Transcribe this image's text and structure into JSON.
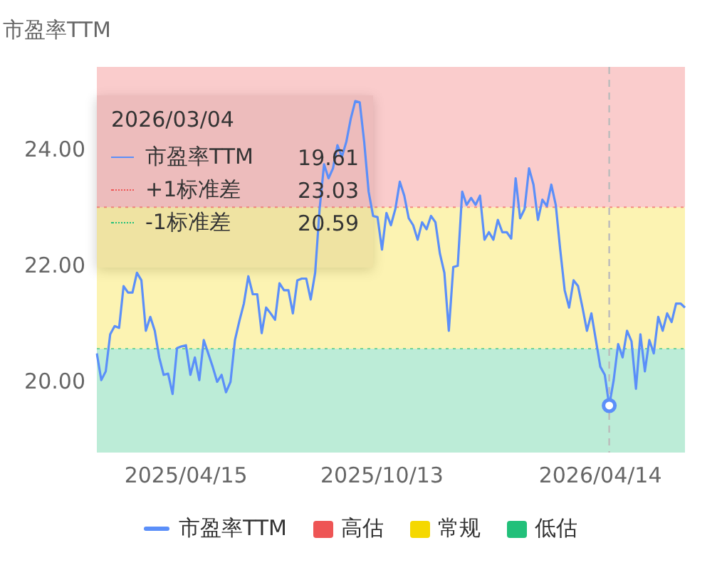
{
  "chart_data": {
    "type": "line",
    "ylabel": "市盈率TTM",
    "categories": [
      null,
      null,
      null,
      null,
      null,
      null,
      null,
      null,
      null,
      null,
      null,
      null,
      null,
      null,
      null,
      null,
      null,
      null,
      null,
      null,
      "2025/04/15",
      null,
      null,
      null,
      null,
      null,
      null,
      null,
      null,
      null,
      null,
      null,
      null,
      null,
      null,
      null,
      null,
      null,
      null,
      null,
      null,
      null,
      null,
      null,
      null,
      null,
      null,
      null,
      null,
      null,
      null,
      null,
      null,
      null,
      null,
      null,
      null,
      null,
      null,
      null,
      null,
      null,
      null,
      null,
      "2025/10/13",
      null,
      null,
      null,
      null,
      null,
      null,
      null,
      null,
      null,
      null,
      null,
      null,
      null,
      null,
      null,
      null,
      null,
      null,
      null,
      null,
      null,
      null,
      null,
      null,
      null,
      null,
      null,
      null,
      null,
      null,
      null,
      null,
      null,
      null,
      null,
      null,
      null,
      null,
      null,
      null,
      null,
      null,
      null,
      null,
      null,
      null,
      null,
      null,
      "2026/04/14",
      null,
      null,
      null,
      null,
      null,
      null,
      null,
      null,
      null,
      null,
      null,
      null,
      null,
      null,
      null,
      null,
      null,
      null,
      null
    ],
    "series": [
      {
        "name": "市盈率TTM",
        "color": "#5b8ff9",
        "values": [
          20.51,
          20.05,
          20.2,
          20.84,
          20.98,
          20.95,
          21.67,
          21.56,
          21.56,
          21.9,
          21.77,
          20.9,
          21.14,
          20.9,
          20.44,
          20.14,
          20.16,
          19.81,
          20.6,
          20.63,
          20.65,
          20.14,
          20.44,
          20.05,
          20.74,
          20.51,
          20.28,
          20.02,
          20.14,
          19.84,
          20.02,
          20.74,
          21.07,
          21.37,
          21.84,
          21.53,
          21.53,
          20.86,
          21.3,
          21.2,
          21.09,
          21.72,
          21.6,
          21.6,
          21.2,
          21.77,
          21.8,
          21.8,
          21.44,
          21.9,
          23.0,
          23.77,
          23.53,
          23.7,
          24.1,
          23.9,
          24.16,
          24.56,
          24.86,
          24.84,
          24.16,
          23.3,
          22.88,
          22.86,
          22.3,
          22.93,
          22.72,
          23.0,
          23.47,
          23.23,
          22.84,
          22.72,
          22.47,
          22.77,
          22.65,
          22.88,
          22.77,
          22.23,
          21.9,
          20.9,
          22.0,
          22.02,
          23.3,
          23.07,
          23.19,
          23.07,
          23.23,
          22.47,
          22.6,
          22.47,
          22.81,
          22.6,
          22.6,
          22.49,
          23.53,
          22.84,
          23.0,
          23.7,
          23.42,
          22.81,
          23.16,
          23.05,
          23.42,
          23.07,
          22.3,
          21.6,
          21.3,
          21.77,
          21.67,
          21.3,
          20.9,
          21.2,
          20.74,
          20.28,
          20.14,
          19.61,
          20.05,
          20.67,
          20.44,
          20.9,
          20.72,
          19.9,
          20.84,
          20.2,
          20.74,
          20.51,
          21.14,
          20.9,
          21.2,
          21.05,
          21.37,
          21.37,
          21.3
        ]
      }
    ],
    "ylim": [
      18.8,
      25.45
    ],
    "yticks": [
      {
        "value": 20,
        "label": "20.00"
      },
      {
        "value": 22,
        "label": "22.00"
      },
      {
        "value": 24,
        "label": "24.00"
      }
    ],
    "bands": [
      {
        "axis": "y",
        "from": 23.03,
        "to": 25.45,
        "label": "高估",
        "color": "#ee5555"
      },
      {
        "axis": "y",
        "from": 20.59,
        "to": 23.03,
        "label": "常规",
        "color": "#f5d800"
      },
      {
        "axis": "y",
        "from": 18.8,
        "to": 20.59,
        "label": "低估",
        "color": "#22c07a"
      }
    ],
    "ref_lines": [
      {
        "axis": "y",
        "value": 23.03,
        "label": "+1标准差",
        "color": "#ee5555",
        "line_style": "dotted"
      },
      {
        "axis": "y",
        "value": 20.59,
        "label": "-1标准差",
        "color": "#22c07a",
        "line_style": "dotted"
      }
    ],
    "annotations": [
      "2026/03/04",
      "19.61",
      "23.03",
      "20.59"
    ],
    "legend": "bottom",
    "grid": false,
    "marker": "none",
    "line_style": "solid"
  }
}
